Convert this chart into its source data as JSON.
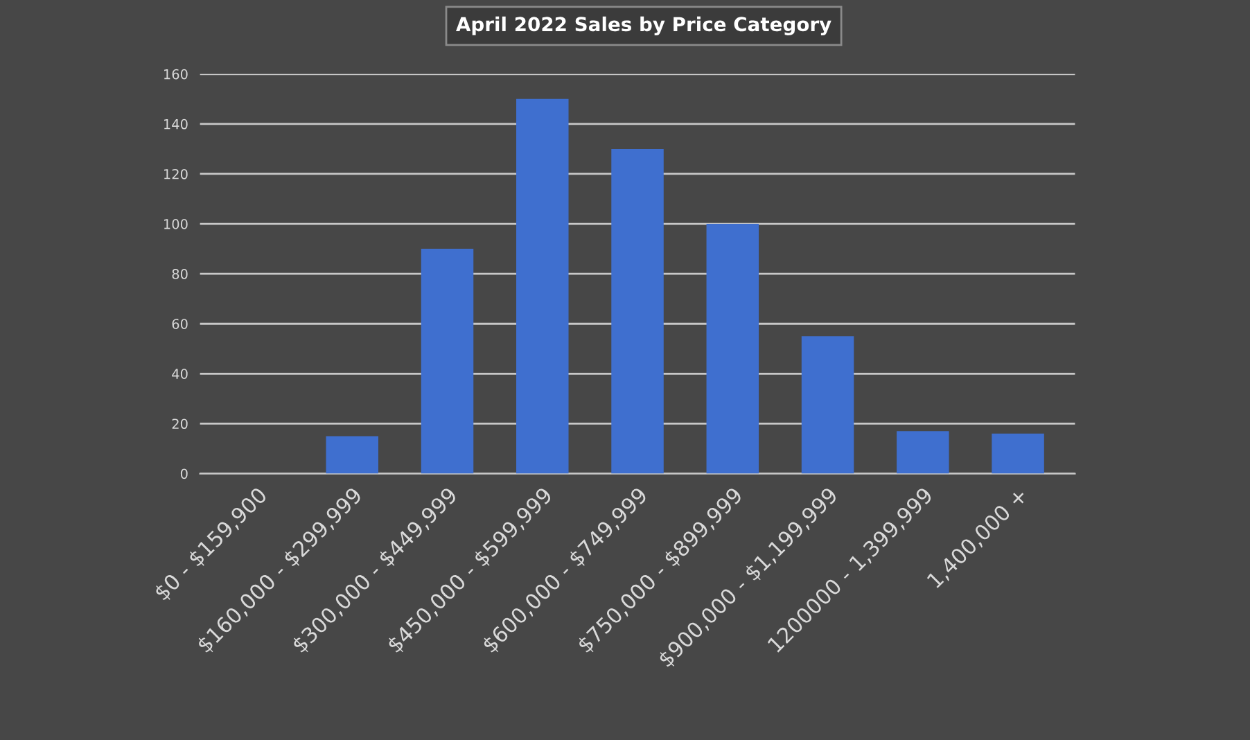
{
  "chart_data": {
    "type": "bar",
    "title": "April 2022 Sales by Price Category",
    "categories": [
      "$0 - $159,900",
      "$160,000 - $299,999",
      "$300,000 - $449,999",
      "$450,000 - $599,999",
      "$600,000 - $749,999",
      "$750,000 - $899,999",
      "$900,000 - $1,199,999",
      "1200000 - 1,399,999",
      "1,400,000 +"
    ],
    "values": [
      0,
      15,
      90,
      150,
      130,
      100,
      55,
      17,
      16
    ],
    "color": "#3f6fcf",
    "ylim": [
      0,
      160
    ],
    "yticks": [
      0,
      20,
      40,
      60,
      80,
      100,
      120,
      140,
      160
    ],
    "grid": "y",
    "legend": false
  }
}
